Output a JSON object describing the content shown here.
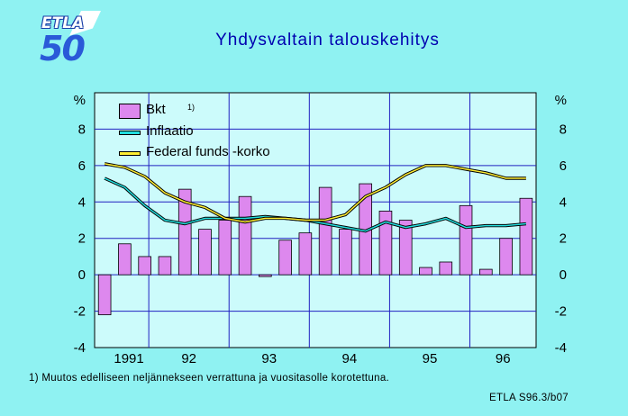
{
  "title": "Yhdysvaltain  talouskehitys",
  "logo": {
    "text_top": "ETLA",
    "text_num": "50"
  },
  "footnote": "1)  Muutos edelliseen neljännekseen verrattuna ja vuositasolle korotettuna.",
  "source": "ETLA S96.3/b07",
  "colors": {
    "background": "#8ff2f2",
    "plot": "#ccfbfb",
    "bar": "#dd88ee",
    "inflation": "#22dddd",
    "fedfunds": "#ffee33",
    "title": "#0000b0"
  },
  "chart_data": {
    "type": "bar+line",
    "ylabel_left": "%",
    "ylabel_right": "%",
    "ylim": [
      -4,
      10
    ],
    "yticks": [
      -4,
      -2,
      0,
      2,
      4,
      6,
      8
    ],
    "year_labels": [
      "1991",
      "92",
      "93",
      "94",
      "95",
      "96"
    ],
    "quarters": 22,
    "legend": {
      "bkt": "Bkt",
      "bkt_note": "1)",
      "inflation": "Inflaatio",
      "fedfunds": "Federal funds -korko"
    },
    "series": [
      {
        "name": "Bkt",
        "kind": "bar",
        "values": [
          -2.2,
          1.7,
          1.0,
          1.0,
          4.7,
          2.5,
          3.0,
          4.3,
          -0.1,
          1.9,
          2.3,
          4.8,
          2.5,
          5.0,
          3.5,
          3.0,
          0.4,
          0.7,
          3.8,
          0.3,
          2.0,
          4.2
        ]
      },
      {
        "name": "Inflaatio",
        "kind": "line",
        "values": [
          5.3,
          4.8,
          3.8,
          3.0,
          2.8,
          3.1,
          3.1,
          3.1,
          3.2,
          3.1,
          3.0,
          2.8,
          2.6,
          2.4,
          2.9,
          2.6,
          2.8,
          3.1,
          2.6,
          2.7,
          2.7,
          2.8
        ]
      },
      {
        "name": "Federal funds -korko",
        "kind": "line",
        "values": [
          6.1,
          5.9,
          5.4,
          4.5,
          4.0,
          3.7,
          3.1,
          2.9,
          3.1,
          3.1,
          3.0,
          3.0,
          3.3,
          4.3,
          4.8,
          5.5,
          6.0,
          6.0,
          5.8,
          5.6,
          5.3,
          5.3
        ]
      }
    ]
  }
}
